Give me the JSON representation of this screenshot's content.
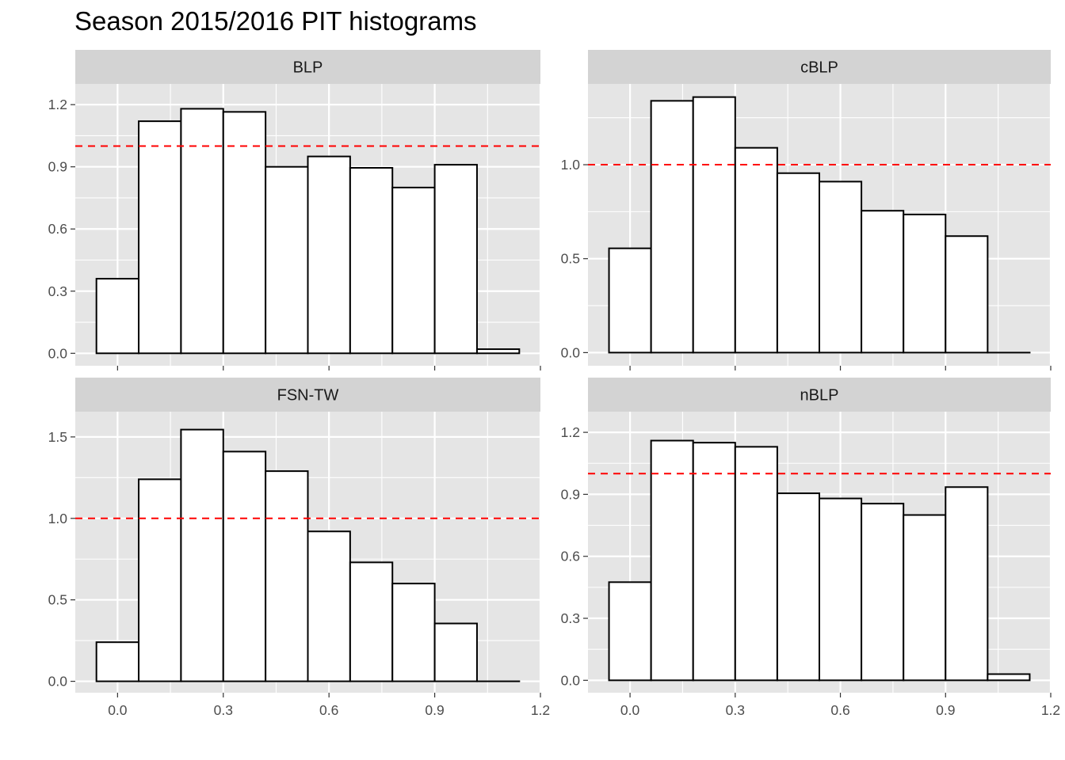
{
  "title": "Season 2015/2016 PIT histograms",
  "colors": {
    "panel_bg": "#e5e5e5",
    "strip_bg": "#d3d3d3",
    "grid": "#ffffff",
    "bar_fill": "#ffffff",
    "bar_stroke": "#000000",
    "reference_line": "#ff0000",
    "tick_text": "#4d4d4d",
    "tick_mark": "#333333"
  },
  "chart_data": [
    {
      "type": "bar",
      "panel": "BLP",
      "bin_width": 0.12,
      "bin_centers": [
        0,
        0.12,
        0.24,
        0.36,
        0.48,
        0.6,
        0.72,
        0.84,
        0.96,
        1.08
      ],
      "values": [
        0.36,
        1.12,
        1.18,
        1.165,
        0.9,
        0.95,
        0.895,
        0.8,
        0.91,
        0.02
      ],
      "reference_line": 1.0,
      "xlim": [
        -0.12,
        1.2
      ],
      "ylim": [
        -0.06,
        1.3
      ],
      "x_ticks": [
        "0.0",
        "0.3",
        "0.6",
        "0.9",
        "1.2"
      ],
      "y_ticks": [
        "0.0",
        "0.3",
        "0.6",
        "0.9",
        "1.2"
      ],
      "show_x_labels": false
    },
    {
      "type": "bar",
      "panel": "cBLP",
      "bin_width": 0.12,
      "bin_centers": [
        0,
        0.12,
        0.24,
        0.36,
        0.48,
        0.6,
        0.72,
        0.84,
        0.96,
        1.08
      ],
      "values": [
        0.555,
        1.34,
        1.36,
        1.09,
        0.955,
        0.91,
        0.755,
        0.735,
        0.62,
        0.0
      ],
      "reference_line": 1.0,
      "xlim": [
        -0.12,
        1.2
      ],
      "ylim": [
        -0.07,
        1.43
      ],
      "x_ticks": [
        "0.0",
        "0.3",
        "0.6",
        "0.9",
        "1.2"
      ],
      "y_ticks": [
        "0.0",
        "0.5",
        "1.0"
      ],
      "show_x_labels": false
    },
    {
      "type": "bar",
      "panel": "FSN-TW",
      "bin_width": 0.12,
      "bin_centers": [
        0,
        0.12,
        0.24,
        0.36,
        0.48,
        0.6,
        0.72,
        0.84,
        0.96,
        1.08
      ],
      "values": [
        0.24,
        1.24,
        1.545,
        1.41,
        1.29,
        0.92,
        0.73,
        0.6,
        0.355,
        0.0
      ],
      "reference_line": 1.0,
      "xlim": [
        -0.12,
        1.2
      ],
      "ylim": [
        -0.07,
        1.655
      ],
      "x_ticks": [
        "0.0",
        "0.3",
        "0.6",
        "0.9",
        "1.2"
      ],
      "y_ticks": [
        "0.0",
        "0.5",
        "1.0",
        "1.5"
      ],
      "show_x_labels": true
    },
    {
      "type": "bar",
      "panel": "nBLP",
      "bin_width": 0.12,
      "bin_centers": [
        0,
        0.12,
        0.24,
        0.36,
        0.48,
        0.6,
        0.72,
        0.84,
        0.96,
        1.08
      ],
      "values": [
        0.475,
        1.16,
        1.15,
        1.13,
        0.905,
        0.88,
        0.855,
        0.8,
        0.935,
        0.03
      ],
      "reference_line": 1.0,
      "xlim": [
        -0.12,
        1.2
      ],
      "ylim": [
        -0.06,
        1.3
      ],
      "x_ticks": [
        "0.0",
        "0.3",
        "0.6",
        "0.9",
        "1.2"
      ],
      "y_ticks": [
        "0.0",
        "0.3",
        "0.6",
        "0.9",
        "1.2"
      ],
      "show_x_labels": true
    }
  ]
}
